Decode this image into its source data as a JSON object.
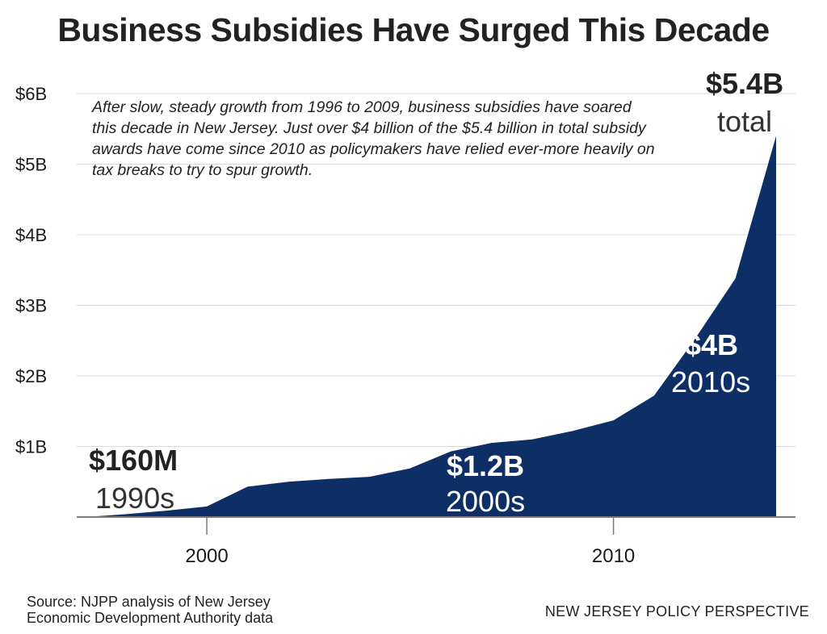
{
  "chart_data": {
    "type": "area",
    "title": "Business Subsidies Have Surged This Decade",
    "xlabel": "",
    "ylabel": "",
    "x": [
      1997,
      1998,
      1999,
      2000,
      2001,
      2002,
      2003,
      2004,
      2005,
      2006,
      2007,
      2008,
      2009,
      2010,
      2011,
      2012,
      2013,
      2014
    ],
    "values": [
      0.0,
      0.04,
      0.09,
      0.15,
      0.43,
      0.5,
      0.54,
      0.57,
      0.69,
      0.93,
      1.05,
      1.1,
      1.22,
      1.37,
      1.72,
      2.52,
      3.38,
      5.4
    ],
    "xlim": [
      1997,
      2014
    ],
    "ylim": [
      0,
      6
    ],
    "x_ticks": [
      2000,
      2010
    ],
    "x_tick_labels": [
      "2000",
      "2010"
    ],
    "y_ticks": [
      1,
      2,
      3,
      4,
      5,
      6
    ],
    "y_tick_labels": [
      "$1B",
      "$2B",
      "$3B",
      "$4B",
      "$5B",
      "$6B"
    ],
    "grid": true,
    "fill_color": "#0d2f66",
    "annotations": [
      {
        "value": "$160M",
        "label": "1990s"
      },
      {
        "value": "$1.2B",
        "label": "2000s"
      },
      {
        "value": "$4B",
        "label": "2010s"
      },
      {
        "value": "$5.4B",
        "label": "total"
      }
    ],
    "note": "After slow, steady growth from 1996 to 2009, business subsidies have soared this decade in New Jersey. Just over $4 billion of the $5.4 billion in total subsidy awards have come since 2010 as policymakers have relied ever-more heavily on tax breaks to try to spur growth."
  },
  "footer": {
    "source_line1": "Source: NJPP analysis of New Jersey",
    "source_line2": "Economic Development Authority data",
    "brand": "NEW JERSEY POLICY PERSPECTIVE"
  }
}
